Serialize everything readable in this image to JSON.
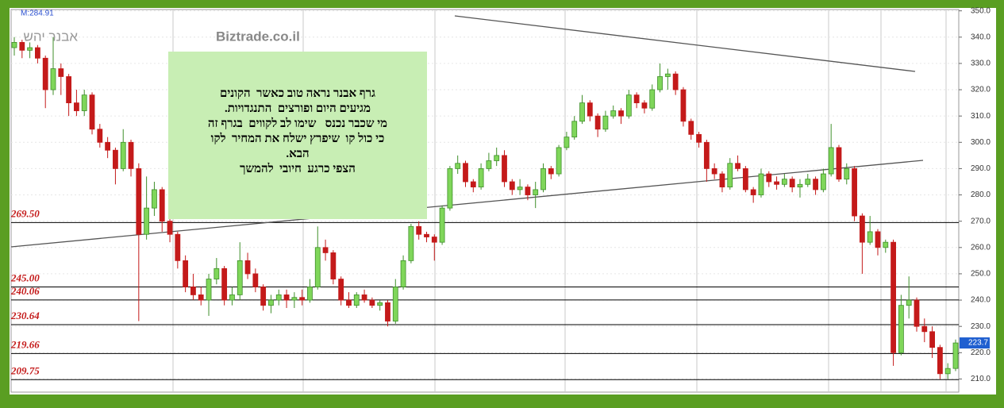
{
  "chart_data": {
    "type": "candlestick",
    "indicator_label": "M:284.91",
    "symbol": "אבנר יהש",
    "watermark": "Biztrade.co.il",
    "annotation": [
      "גרף אבנר נראה טוב כאשר  הקונים",
      "מגיעים היום ופורצים  התנגדויות.",
      "מי שכבר נכנס   שימו לב לקווים  בגרף זה",
      "כי כול קו  שיפרץ ישלח את המחיר  לקו",
      "הבא.",
      "הצפי כרגע  חיובי  להמשך"
    ],
    "up_color": "#7fd65a",
    "down_color": "#c41a1a",
    "level_color": "#c41a1a",
    "ylim": [
      205,
      350.5
    ],
    "yticks": [
      {
        "value": 210,
        "label": "210.0"
      },
      {
        "value": 220,
        "label": "220.0"
      },
      {
        "value": 230,
        "label": "230.0"
      },
      {
        "value": 240,
        "label": "240.0"
      },
      {
        "value": 250,
        "label": "250.0"
      },
      {
        "value": 260,
        "label": "260.0"
      },
      {
        "value": 270,
        "label": "270.0"
      },
      {
        "value": 280,
        "label": "280.0"
      },
      {
        "value": 290,
        "label": "290.0"
      },
      {
        "value": 300,
        "label": "300.0"
      },
      {
        "value": 310,
        "label": "310.0"
      },
      {
        "value": 320,
        "label": "320.0"
      },
      {
        "value": 330,
        "label": "330.0"
      },
      {
        "value": 340,
        "label": "340.0"
      },
      {
        "value": 350,
        "label": "350.0"
      }
    ],
    "levels": [
      {
        "value": 269.5,
        "label": "269.50"
      },
      {
        "value": 245,
        "label": "245.00"
      },
      {
        "value": 240.06,
        "label": "240.06"
      },
      {
        "value": 230.64,
        "label": "230.64"
      },
      {
        "value": 219.66,
        "label": "219.66"
      },
      {
        "value": 209.75,
        "label": "209.75"
      }
    ],
    "ohlc": [
      [
        336,
        340,
        333,
        338
      ],
      [
        338,
        339,
        332,
        335
      ],
      [
        335,
        338,
        332,
        336
      ],
      [
        336,
        337,
        330,
        332
      ],
      [
        332,
        333,
        313,
        320
      ],
      [
        320,
        340,
        318,
        328
      ],
      [
        328,
        330,
        318,
        325
      ],
      [
        325,
        326,
        310,
        315
      ],
      [
        315,
        320,
        310,
        312
      ],
      [
        312,
        320,
        310,
        318
      ],
      [
        318,
        319,
        303,
        305
      ],
      [
        305,
        307,
        298,
        300
      ],
      [
        300,
        302,
        294,
        297
      ],
      [
        297,
        298,
        284,
        290
      ],
      [
        290,
        305,
        289,
        300
      ],
      [
        300,
        301,
        287,
        290
      ],
      [
        290,
        292,
        232,
        265
      ],
      [
        265,
        287,
        263,
        275
      ],
      [
        275,
        285,
        272,
        282
      ],
      [
        282,
        283,
        266,
        270
      ],
      [
        270,
        272,
        262,
        265
      ],
      [
        265,
        266,
        252,
        255
      ],
      [
        255,
        257,
        243,
        245
      ],
      [
        245,
        250,
        240,
        242
      ],
      [
        242,
        245,
        238,
        240
      ],
      [
        240,
        250,
        234,
        248
      ],
      [
        248,
        256,
        246,
        252
      ],
      [
        252,
        253,
        238,
        240
      ],
      [
        240,
        245,
        238,
        242
      ],
      [
        242,
        262,
        240,
        255
      ],
      [
        255,
        258,
        248,
        250
      ],
      [
        250,
        252,
        243,
        245
      ],
      [
        245,
        246,
        236,
        238
      ],
      [
        238,
        242,
        235,
        240
      ],
      [
        240,
        244,
        238,
        242
      ],
      [
        242,
        244,
        237,
        240
      ],
      [
        240,
        243,
        237,
        241
      ],
      [
        241,
        244,
        238,
        240
      ],
      [
        240,
        248,
        239,
        245
      ],
      [
        245,
        268,
        244,
        260
      ],
      [
        260,
        263,
        255,
        258
      ],
      [
        258,
        259,
        246,
        248
      ],
      [
        248,
        249,
        238,
        240
      ],
      [
        240,
        243,
        237,
        238
      ],
      [
        238,
        243,
        237,
        242
      ],
      [
        242,
        244,
        239,
        240
      ],
      [
        240,
        241,
        237,
        238
      ],
      [
        238,
        240,
        236,
        239
      ],
      [
        239,
        240,
        230,
        232
      ],
      [
        232,
        248,
        231,
        245
      ],
      [
        245,
        257,
        244,
        255
      ],
      [
        255,
        269,
        254,
        268
      ],
      [
        268,
        270,
        263,
        265
      ],
      [
        265,
        266,
        262,
        264
      ],
      [
        264,
        265,
        255,
        262
      ],
      [
        262,
        276,
        261,
        275
      ],
      [
        275,
        291,
        274,
        290
      ],
      [
        290,
        295,
        288,
        292
      ],
      [
        292,
        293,
        283,
        285
      ],
      [
        285,
        286,
        281,
        283
      ],
      [
        283,
        292,
        282,
        290
      ],
      [
        290,
        296,
        289,
        293
      ],
      [
        293,
        298,
        291,
        295
      ],
      [
        295,
        297,
        283,
        285
      ],
      [
        285,
        286,
        280,
        282
      ],
      [
        282,
        286,
        280,
        283
      ],
      [
        283,
        284,
        278,
        280
      ],
      [
        280,
        285,
        275,
        282
      ],
      [
        282,
        292,
        281,
        290
      ],
      [
        290,
        291,
        286,
        288
      ],
      [
        288,
        299,
        287,
        298
      ],
      [
        298,
        304,
        297,
        302
      ],
      [
        302,
        310,
        301,
        308
      ],
      [
        308,
        318,
        307,
        315
      ],
      [
        315,
        316,
        308,
        310
      ],
      [
        310,
        311,
        302,
        305
      ],
      [
        305,
        312,
        304,
        310
      ],
      [
        310,
        314,
        309,
        312
      ],
      [
        312,
        313,
        307,
        310
      ],
      [
        310,
        320,
        309,
        318
      ],
      [
        318,
        319,
        313,
        315
      ],
      [
        315,
        316,
        311,
        313
      ],
      [
        313,
        322,
        312,
        320
      ],
      [
        320,
        330,
        319,
        325
      ],
      [
        325,
        328,
        320,
        326
      ],
      [
        326,
        327,
        318,
        320
      ],
      [
        320,
        321,
        306,
        308
      ],
      [
        308,
        309,
        301,
        303
      ],
      [
        303,
        304,
        298,
        300
      ],
      [
        300,
        301,
        285,
        290
      ],
      [
        290,
        292,
        286,
        288
      ],
      [
        288,
        289,
        281,
        283
      ],
      [
        283,
        294,
        282,
        292
      ],
      [
        292,
        295,
        289,
        290
      ],
      [
        290,
        291,
        281,
        282
      ],
      [
        282,
        283,
        277,
        280
      ],
      [
        280,
        290,
        279,
        288
      ],
      [
        288,
        289,
        283,
        285
      ],
      [
        285,
        287,
        282,
        284
      ],
      [
        284,
        288,
        283,
        286
      ],
      [
        286,
        287,
        281,
        283
      ],
      [
        283,
        286,
        279,
        284
      ],
      [
        284,
        288,
        283,
        286
      ],
      [
        286,
        287,
        280,
        282
      ],
      [
        282,
        290,
        281,
        288
      ],
      [
        288,
        307,
        287,
        298
      ],
      [
        298,
        299,
        285,
        286
      ],
      [
        286,
        292,
        284,
        290
      ],
      [
        290,
        291,
        270,
        272
      ],
      [
        272,
        273,
        250,
        262
      ],
      [
        262,
        272,
        261,
        266
      ],
      [
        266,
        267,
        257,
        260
      ],
      [
        260,
        263,
        258,
        262
      ],
      [
        262,
        263,
        215,
        220
      ],
      [
        220,
        242,
        219,
        238
      ],
      [
        238,
        249,
        233,
        240
      ],
      [
        240,
        241,
        228,
        230
      ],
      [
        230,
        233,
        224,
        228
      ],
      [
        228,
        230,
        218,
        222
      ],
      [
        222,
        223,
        210,
        212
      ],
      [
        212,
        216,
        210,
        214
      ],
      [
        214,
        225,
        213,
        223.7
      ]
    ]
  }
}
